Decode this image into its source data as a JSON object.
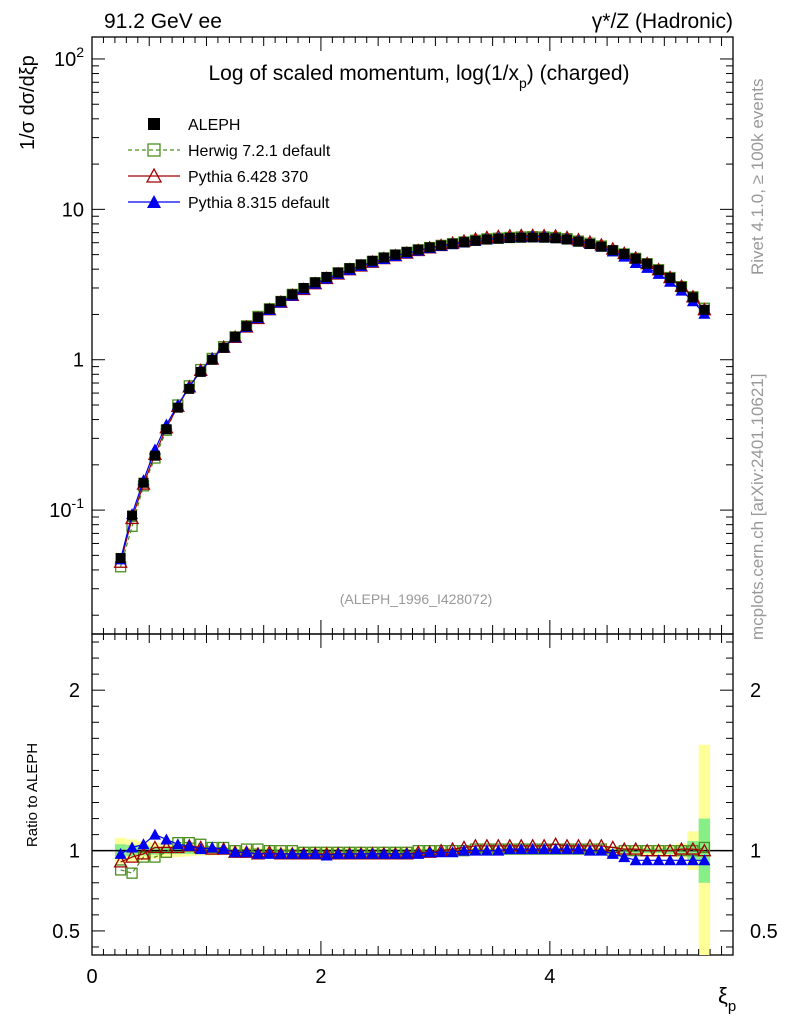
{
  "header": {
    "left": "91.2 GeV ee",
    "right": "γ*/Z (Hadronic)"
  },
  "side": {
    "rivet": "Rivet 4.1.0, ≥ 100k events",
    "mcplots": "mcplots.cern.ch [arXiv:2401.10621]"
  },
  "chart_data": [
    {
      "type": "line",
      "panel": "main",
      "title": "Log of scaled momentum, log(1/x_p) (charged)",
      "ylabel": "1/σ dσ/dξ_p",
      "yscale": "log",
      "ylim": [
        0.015,
        140
      ],
      "xlim": [
        0,
        5.6
      ],
      "watermark": "(ALEPH_1996_I428072)",
      "y_tick_labels": [
        "10^-1",
        "1",
        "10",
        "10^2"
      ],
      "x": [
        0.25,
        0.35,
        0.45,
        0.55,
        0.65,
        0.75,
        0.85,
        0.95,
        1.05,
        1.15,
        1.25,
        1.35,
        1.45,
        1.55,
        1.65,
        1.75,
        1.85,
        1.95,
        2.05,
        2.15,
        2.25,
        2.35,
        2.45,
        2.55,
        2.65,
        2.75,
        2.85,
        2.95,
        3.05,
        3.15,
        3.25,
        3.35,
        3.45,
        3.55,
        3.65,
        3.75,
        3.85,
        3.95,
        4.05,
        4.15,
        4.25,
        4.35,
        4.45,
        4.55,
        4.65,
        4.75,
        4.85,
        4.95,
        5.05,
        5.15,
        5.25,
        5.35
      ],
      "series": [
        {
          "name": "ALEPH",
          "marker": "square-filled",
          "color": "#000000",
          "values": [
            0.048,
            0.092,
            0.152,
            0.23,
            0.345,
            0.48,
            0.64,
            0.83,
            1.0,
            1.2,
            1.42,
            1.67,
            1.92,
            2.18,
            2.45,
            2.72,
            3.0,
            3.27,
            3.55,
            3.8,
            4.06,
            4.3,
            4.55,
            4.78,
            5.0,
            5.2,
            5.4,
            5.58,
            5.75,
            5.9,
            6.05,
            6.18,
            6.3,
            6.38,
            6.45,
            6.48,
            6.5,
            6.48,
            6.42,
            6.3,
            6.1,
            5.88,
            5.65,
            5.35,
            5.05,
            4.7,
            4.35,
            3.95,
            3.5,
            3.05,
            2.6,
            2.15
          ]
        },
        {
          "name": "Herwig 7.2.1 default",
          "marker": "square-open",
          "color": "#4a8f1f",
          "dash": true,
          "values": [
            0.042,
            0.078,
            0.145,
            0.222,
            0.34,
            0.5,
            0.67,
            0.86,
            1.02,
            1.22,
            1.42,
            1.68,
            1.94,
            2.18,
            2.44,
            2.72,
            2.97,
            3.25,
            3.52,
            3.78,
            4.03,
            4.27,
            4.5,
            4.75,
            4.97,
            5.18,
            5.38,
            5.57,
            5.76,
            5.92,
            6.07,
            6.23,
            6.36,
            6.43,
            6.5,
            6.55,
            6.58,
            6.55,
            6.5,
            6.38,
            6.15,
            5.95,
            5.7,
            5.3,
            5.05,
            4.72,
            4.35,
            3.97,
            3.52,
            3.06,
            2.62,
            2.2
          ]
        },
        {
          "name": "Pythia 6.428 370",
          "marker": "triangle-open",
          "color": "#a00000",
          "values": [
            0.045,
            0.088,
            0.149,
            0.235,
            0.353,
            0.49,
            0.66,
            0.85,
            1.01,
            1.21,
            1.41,
            1.65,
            1.88,
            2.15,
            2.41,
            2.68,
            2.93,
            3.2,
            3.47,
            3.72,
            3.97,
            4.2,
            4.45,
            4.7,
            4.92,
            5.12,
            5.33,
            5.55,
            5.75,
            5.95,
            6.15,
            6.35,
            6.5,
            6.6,
            6.67,
            6.7,
            6.7,
            6.68,
            6.65,
            6.5,
            6.28,
            6.05,
            5.8,
            5.45,
            5.1,
            4.75,
            4.36,
            3.97,
            3.52,
            3.08,
            2.62,
            2.15
          ]
        },
        {
          "name": "Pythia 8.315 default",
          "marker": "triangle-filled",
          "color": "#0000ee",
          "values": [
            0.047,
            0.094,
            0.158,
            0.253,
            0.37,
            0.5,
            0.66,
            0.84,
            1.02,
            1.21,
            1.41,
            1.65,
            1.89,
            2.14,
            2.4,
            2.67,
            2.94,
            3.2,
            3.46,
            3.72,
            3.96,
            4.2,
            4.45,
            4.68,
            4.9,
            5.11,
            5.32,
            5.52,
            5.7,
            5.87,
            6.03,
            6.18,
            6.32,
            6.42,
            6.49,
            6.55,
            6.58,
            6.56,
            6.5,
            6.38,
            6.15,
            5.91,
            5.65,
            5.25,
            4.85,
            4.4,
            4.08,
            3.72,
            3.3,
            2.88,
            2.45,
            2.02
          ]
        }
      ]
    },
    {
      "type": "line",
      "panel": "ratio",
      "ylabel": "Ratio to ALEPH",
      "xlabel": "ξ_p",
      "ylim": [
        0.35,
        2.35
      ],
      "xlim": [
        0,
        5.6
      ],
      "y_tick_labels": [
        "0.5",
        "1",
        "2"
      ],
      "x_tick_labels": [
        "0",
        "2",
        "4"
      ],
      "band_yellow_halfwidth": [
        0.08,
        0.07,
        0.06,
        0.05,
        0.045,
        0.04,
        0.035,
        0.03,
        0.03,
        0.025,
        0.025,
        0.025,
        0.02,
        0.02,
        0.02,
        0.02,
        0.02,
        0.02,
        0.02,
        0.02,
        0.02,
        0.02,
        0.02,
        0.02,
        0.02,
        0.02,
        0.02,
        0.02,
        0.02,
        0.02,
        0.02,
        0.02,
        0.02,
        0.02,
        0.02,
        0.02,
        0.02,
        0.02,
        0.02,
        0.02,
        0.02,
        0.02,
        0.02,
        0.025,
        0.025,
        0.03,
        0.03,
        0.03,
        0.035,
        0.045,
        0.12,
        0.66
      ],
      "band_green_halfwidth": [
        0.04,
        0.035,
        0.03,
        0.025,
        0.02,
        0.02,
        0.02,
        0.015,
        0.015,
        0.015,
        0.01,
        0.01,
        0.01,
        0.01,
        0.01,
        0.01,
        0.01,
        0.01,
        0.01,
        0.01,
        0.01,
        0.01,
        0.01,
        0.01,
        0.01,
        0.01,
        0.01,
        0.01,
        0.01,
        0.01,
        0.01,
        0.01,
        0.01,
        0.01,
        0.01,
        0.01,
        0.01,
        0.01,
        0.01,
        0.01,
        0.01,
        0.01,
        0.01,
        0.01,
        0.015,
        0.015,
        0.015,
        0.015,
        0.02,
        0.025,
        0.06,
        0.2
      ],
      "series": [
        {
          "name": "Herwig 7.2.1 default",
          "values": [
            0.88,
            0.86,
            0.96,
            0.96,
            0.99,
            1.05,
            1.05,
            1.04,
            1.02,
            1.02,
            1.0,
            1.01,
            1.01,
            1.0,
            1.0,
            1.0,
            0.99,
            0.99,
            0.99,
            0.99,
            0.99,
            0.99,
            0.99,
            0.99,
            0.99,
            0.99,
            1.0,
            1.0,
            1.0,
            1.0,
            1.0,
            1.01,
            1.01,
            1.01,
            1.01,
            1.01,
            1.01,
            1.01,
            1.01,
            1.01,
            1.01,
            1.01,
            1.01,
            0.99,
            1.0,
            1.0,
            1.0,
            1.0,
            1.0,
            1.0,
            1.0,
            1.02
          ]
        },
        {
          "name": "Pythia 6.428 370",
          "values": [
            0.93,
            0.96,
            0.98,
            1.02,
            1.02,
            1.02,
            1.03,
            1.02,
            1.01,
            1.01,
            0.99,
            0.99,
            0.98,
            0.99,
            0.98,
            0.98,
            0.98,
            0.98,
            0.98,
            0.98,
            0.98,
            0.98,
            0.98,
            0.98,
            0.98,
            0.98,
            0.99,
            0.99,
            1.0,
            1.01,
            1.02,
            1.03,
            1.03,
            1.03,
            1.03,
            1.03,
            1.03,
            1.03,
            1.04,
            1.03,
            1.03,
            1.03,
            1.03,
            1.02,
            1.01,
            1.01,
            1.0,
            1.0,
            1.0,
            1.01,
            1.01,
            1.0
          ]
        },
        {
          "name": "Pythia 8.315 default",
          "values": [
            0.98,
            1.02,
            1.04,
            1.1,
            1.07,
            1.04,
            1.03,
            1.01,
            1.02,
            1.01,
            0.99,
            0.99,
            0.98,
            0.98,
            0.98,
            0.98,
            0.98,
            0.98,
            0.97,
            0.98,
            0.98,
            0.98,
            0.98,
            0.98,
            0.98,
            0.98,
            0.98,
            0.99,
            0.99,
            0.99,
            1.0,
            1.0,
            1.0,
            1.0,
            1.01,
            1.01,
            1.01,
            1.01,
            1.01,
            1.01,
            1.01,
            1.0,
            1.0,
            0.98,
            0.96,
            0.94,
            0.94,
            0.94,
            0.94,
            0.94,
            0.94,
            0.94
          ]
        }
      ]
    }
  ]
}
